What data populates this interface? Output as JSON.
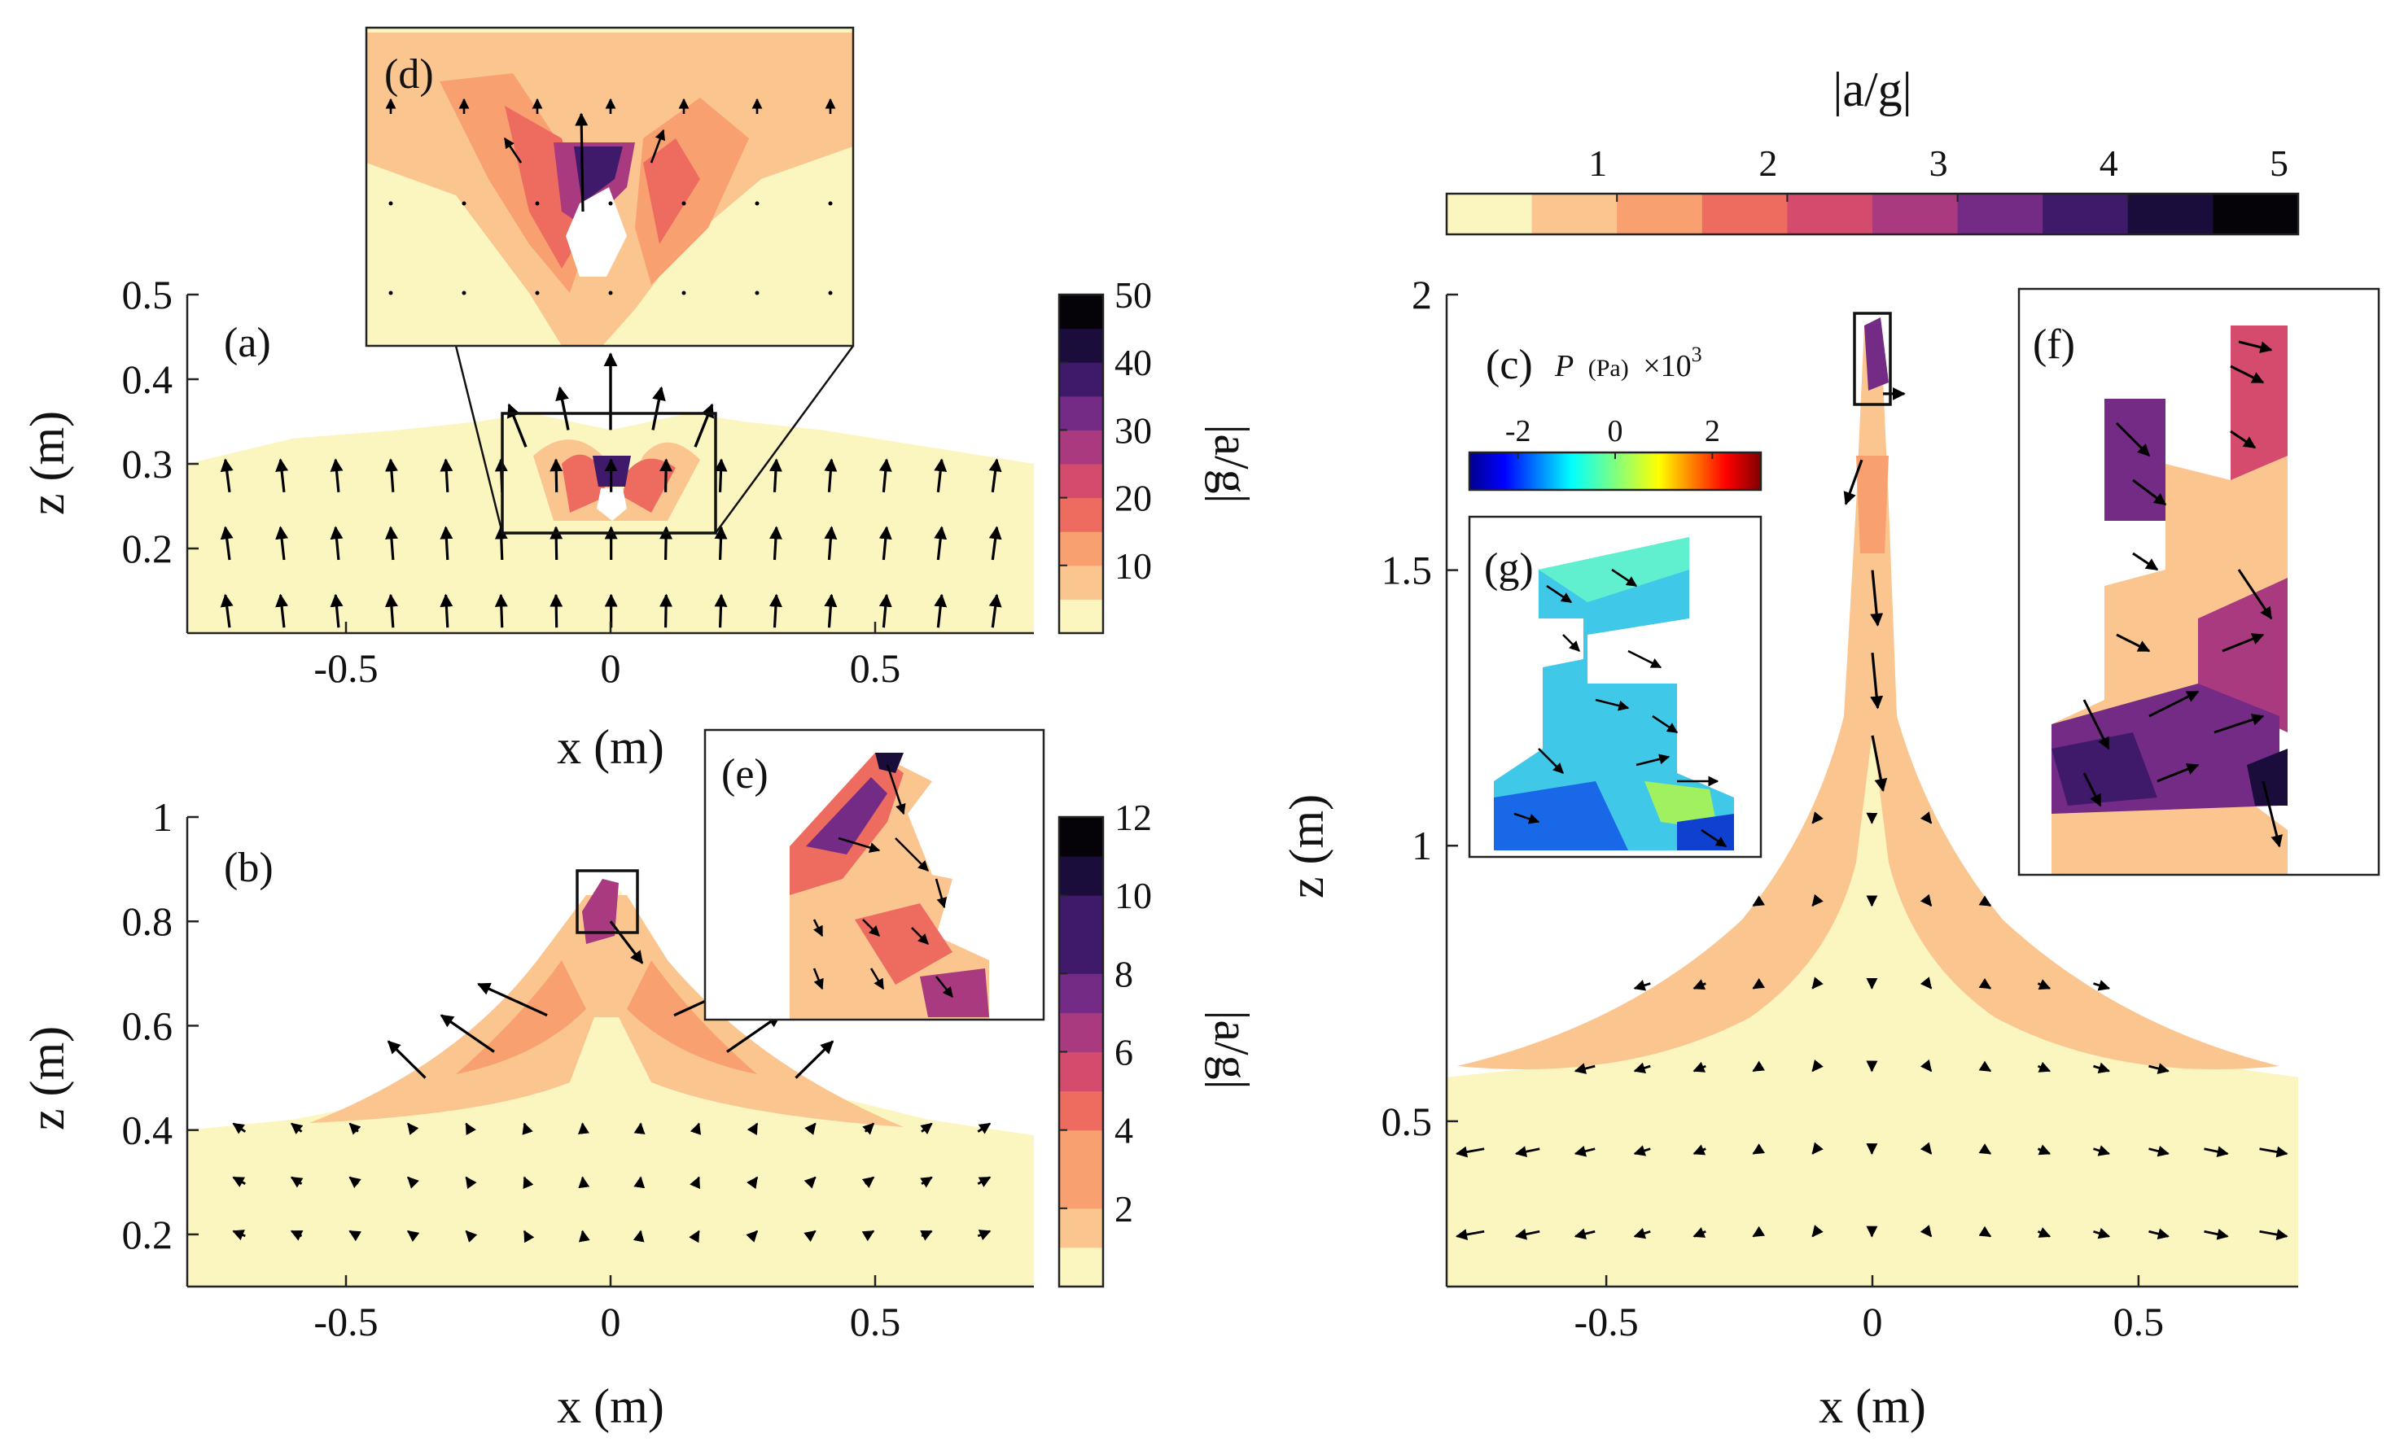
{
  "chart_data": [
    {
      "panel": "a",
      "type": "contour",
      "label": "(a)",
      "xlabel": "x (m)",
      "ylabel": "z (m)",
      "xlim": [
        -0.8,
        0.8
      ],
      "ylim": [
        0.1,
        0.5
      ],
      "xticks": [
        "-0.5",
        "0",
        "0.5"
      ],
      "yticks": [
        "0.2",
        "0.3",
        "0.4",
        "0.5"
      ],
      "surface": [
        [
          -0.8,
          0.3
        ],
        [
          -0.6,
          0.33
        ],
        [
          -0.4,
          0.34
        ],
        [
          -0.25,
          0.35
        ],
        [
          -0.15,
          0.36
        ],
        [
          0,
          0.34
        ],
        [
          0.15,
          0.36
        ],
        [
          0.25,
          0.35
        ],
        [
          0.4,
          0.34
        ],
        [
          0.6,
          0.32
        ],
        [
          0.8,
          0.3
        ]
      ],
      "colorbar": {
        "label": "|a/g|",
        "range": [
          0,
          50
        ],
        "ticks": [
          "10",
          "20",
          "30",
          "40",
          "50"
        ]
      }
    },
    {
      "panel": "b",
      "type": "contour",
      "label": "(b)",
      "xlabel": "x (m)",
      "ylabel": "z (m)",
      "xlim": [
        -0.8,
        0.8
      ],
      "ylim": [
        0.1,
        1.0
      ],
      "xticks": [
        "-0.5",
        "0",
        "0.5"
      ],
      "yticks": [
        "0.2",
        "0.4",
        "0.6",
        "0.8",
        "1"
      ],
      "surface": [
        [
          -0.8,
          0.4
        ],
        [
          -0.6,
          0.42
        ],
        [
          -0.4,
          0.46
        ],
        [
          -0.25,
          0.52
        ],
        [
          -0.12,
          0.6
        ],
        [
          -0.05,
          0.72
        ],
        [
          -0.02,
          0.85
        ],
        [
          0.02,
          0.86
        ],
        [
          0.05,
          0.74
        ],
        [
          0.12,
          0.62
        ],
        [
          0.25,
          0.53
        ],
        [
          0.4,
          0.47
        ],
        [
          0.6,
          0.42
        ],
        [
          0.8,
          0.39
        ]
      ],
      "colorbar": {
        "label": "|a/g|",
        "range": [
          0,
          12
        ],
        "ticks": [
          "2",
          "4",
          "6",
          "8",
          "10",
          "12"
        ]
      }
    },
    {
      "panel": "c",
      "type": "contour",
      "label": "(c)",
      "xlabel": "x (m)",
      "ylabel": "z (m)",
      "xlim": [
        -0.8,
        0.8
      ],
      "ylim": [
        0.2,
        2.0
      ],
      "xticks": [
        "-0.5",
        "0",
        "0.5"
      ],
      "yticks": [
        "0.5",
        "1",
        "1.5",
        "2"
      ],
      "surface": [
        [
          -0.8,
          0.58
        ],
        [
          -0.6,
          0.6
        ],
        [
          -0.4,
          0.66
        ],
        [
          -0.25,
          0.74
        ],
        [
          -0.12,
          0.86
        ],
        [
          -0.06,
          1.02
        ],
        [
          -0.03,
          1.3
        ],
        [
          -0.02,
          1.6
        ],
        [
          0,
          1.95
        ],
        [
          0.03,
          1.6
        ],
        [
          0.04,
          1.3
        ],
        [
          0.07,
          1.02
        ],
        [
          0.13,
          0.86
        ],
        [
          0.27,
          0.74
        ],
        [
          0.45,
          0.66
        ],
        [
          0.65,
          0.6
        ],
        [
          0.8,
          0.58
        ]
      ],
      "colorbar": {
        "label": "|a/g|",
        "range": [
          0,
          5
        ],
        "ticks": [
          "1",
          "2",
          "3",
          "4",
          "5"
        ]
      },
      "pressure_colorbar": {
        "label_var": "P",
        "label_unit": "(Pa)",
        "label_scale": "×10",
        "label_exp": "3",
        "range": [
          -3,
          3
        ],
        "ticks": [
          "-2",
          "0",
          "2"
        ]
      }
    }
  ],
  "insets": [
    {
      "label": "(d)",
      "of": "a"
    },
    {
      "label": "(e)",
      "of": "b"
    },
    {
      "label": "(f)",
      "of": "c"
    },
    {
      "label": "(g)",
      "of": "c"
    }
  ],
  "colors": {
    "magma": [
      "#fbf6c0",
      "#fbc590",
      "#f8a070",
      "#ee6b60",
      "#d54b6d",
      "#a93a80",
      "#742b85",
      "#3f1a6b",
      "#1a0c3b",
      "#050308"
    ],
    "jet": [
      "#00008f",
      "#0000ff",
      "#0080ff",
      "#00ffff",
      "#80ff80",
      "#ffff00",
      "#ff8000",
      "#ff0000",
      "#800000"
    ],
    "arrow": "#000000"
  }
}
